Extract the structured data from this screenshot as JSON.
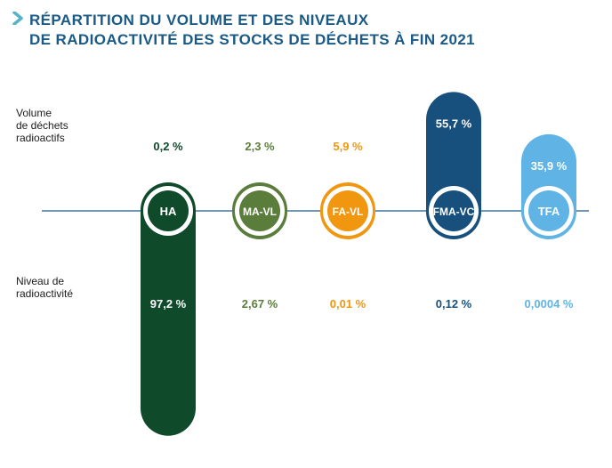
{
  "title": {
    "line1": "RÉPARTITION DU VOLUME ET DES NIVEAUX",
    "line2": "DE RADIOACTIVITÉ DES STOCKS DE DÉCHETS À FIN 2021"
  },
  "row_labels": {
    "volume": [
      "Volume",
      "de déchets",
      "radioactifs"
    ],
    "activity": [
      "Niveau de",
      "radioactivité"
    ]
  },
  "chart_data": {
    "type": "bar",
    "categories": [
      "HA",
      "MA-VL",
      "FA-VL",
      "FMA-VC",
      "TFA"
    ],
    "series": [
      {
        "name": "Volume de déchets radioactifs",
        "values": [
          0.2,
          2.3,
          5.9,
          55.7,
          35.9
        ],
        "labels": [
          "0,2 %",
          "2,3 %",
          "5,9 %",
          "55,7 %",
          "35,9 %"
        ]
      },
      {
        "name": "Niveau de radioactivité",
        "values": [
          97.2,
          2.67,
          0.01,
          0.12,
          0.0004
        ],
        "labels": [
          "97,2 %",
          "2,67 %",
          "0,01 %",
          "0,12 %",
          "0,0004 %"
        ]
      }
    ],
    "colors": [
      "#0f4a2b",
      "#5a7d3c",
      "#f0960f",
      "#174f7d",
      "#5fb4e5"
    ],
    "label_colors": [
      "#0f4a2b",
      "#5a7d3c",
      "#f0960f",
      "#174f7d",
      "#5fb4e5"
    ],
    "accent": "#1a5a87",
    "grid": false,
    "legend": "none"
  }
}
